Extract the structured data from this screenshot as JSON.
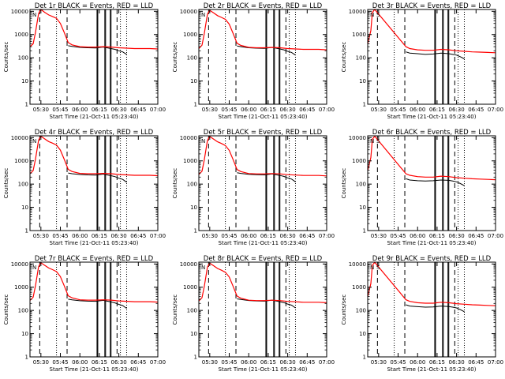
{
  "chart_data": [
    {
      "type": "line",
      "title": "Det 1r BLACK = Events, RED = LLD",
      "flags": [
        "N"
      ],
      "dashed_x": [
        5.485,
        5.836,
        6.477
      ],
      "solid_x": [
        6.22,
        6.23,
        6.32,
        6.33,
        6.39,
        6.4
      ],
      "dotted_x": [
        5.7,
        6.52,
        6.6
      ],
      "series": [
        {
          "name": "BLACK = Events",
          "color": "#000000",
          "x": [
            5.36,
            5.5,
            5.55,
            5.62,
            5.7,
            5.76,
            5.8,
            5.85,
            5.9,
            6.0,
            6.1,
            6.2,
            6.3,
            6.4,
            6.45,
            6.5,
            6.55,
            6.6
          ],
          "values": [
            null,
            null,
            null,
            null,
            null,
            null,
            null,
            330,
            310,
            280,
            270,
            265,
            290,
            250,
            230,
            200,
            180,
            140
          ]
        },
        {
          "name": "RED = LLD",
          "color": "#ff0000",
          "x": [
            5.36,
            5.4,
            5.43,
            5.47,
            5.5,
            5.55,
            5.6,
            5.65,
            5.7,
            5.75,
            5.8,
            5.85,
            5.9,
            6.0,
            6.1,
            6.2,
            6.3,
            6.4,
            6.5,
            6.6,
            6.7,
            6.8,
            6.9,
            7.0
          ],
          "values": [
            300,
            400,
            1200,
            8000,
            12000,
            9000,
            7000,
            6000,
            5000,
            3000,
            1200,
            450,
            360,
            300,
            290,
            290,
            300,
            290,
            270,
            260,
            250,
            250,
            250,
            240
          ]
        }
      ]
    },
    {
      "type": "line",
      "title": "Det 2r BLACK = Events, RED = LLD",
      "flags": [
        "N"
      ],
      "dashed_x": [
        5.485,
        5.836,
        6.477
      ],
      "solid_x": [
        6.22,
        6.23,
        6.32,
        6.33,
        6.39,
        6.4
      ],
      "dotted_x": [
        5.7,
        6.52,
        6.6
      ],
      "series": [
        {
          "name": "BLACK = Events",
          "color": "#000000",
          "x": [
            5.85,
            5.9,
            6.0,
            6.1,
            6.2,
            6.3,
            6.4,
            6.45,
            6.5,
            6.55,
            6.6
          ],
          "values": [
            320,
            300,
            270,
            260,
            255,
            280,
            240,
            220,
            190,
            170,
            130
          ]
        },
        {
          "name": "RED = LLD",
          "color": "#ff0000",
          "x": [
            5.36,
            5.4,
            5.43,
            5.47,
            5.5,
            5.55,
            5.6,
            5.65,
            5.7,
            5.75,
            5.8,
            5.85,
            5.9,
            6.0,
            6.1,
            6.2,
            6.3,
            6.4,
            6.5,
            6.6,
            6.7,
            6.8,
            6.9,
            7.0
          ],
          "values": [
            250,
            350,
            1100,
            7500,
            11000,
            8500,
            6500,
            5500,
            4500,
            2800,
            1100,
            420,
            340,
            280,
            270,
            270,
            280,
            270,
            250,
            240,
            230,
            230,
            230,
            220
          ]
        }
      ]
    },
    {
      "type": "line",
      "title": "Det 3r BLACK = Events, RED = LLD",
      "flags": [
        "N",
        "S"
      ],
      "dashed_x": [
        5.485,
        5.836,
        6.477
      ],
      "solid_x": [
        6.22,
        6.23,
        6.32,
        6.33,
        6.39,
        6.4
      ],
      "dotted_x": [
        5.7,
        6.52,
        6.6
      ],
      "series": [
        {
          "name": "BLACK = Events",
          "color": "#000000",
          "x": [
            5.85,
            5.9,
            6.0,
            6.1,
            6.2,
            6.3,
            6.4,
            6.45,
            6.5,
            6.55,
            6.6
          ],
          "values": [
            180,
            160,
            150,
            140,
            145,
            160,
            150,
            140,
            130,
            110,
            90
          ]
        },
        {
          "name": "RED = LLD",
          "color": "#ff0000",
          "x": [
            5.36,
            5.4,
            5.42,
            5.45,
            5.85,
            5.9,
            6.0,
            6.1,
            6.2,
            6.3,
            6.4,
            6.5,
            6.6,
            6.7,
            6.8,
            6.9,
            7.0
          ],
          "values": [
            400,
            1500,
            9000,
            12000,
            300,
            250,
            220,
            210,
            210,
            230,
            220,
            200,
            190,
            180,
            175,
            170,
            165
          ]
        }
      ]
    },
    {
      "type": "line",
      "title": "Det 4r BLACK = Events, RED = LLD",
      "flags": [
        "N"
      ],
      "dashed_x": [
        5.485,
        5.836,
        6.477
      ],
      "solid_x": [
        6.22,
        6.23,
        6.32,
        6.33,
        6.39,
        6.4
      ],
      "dotted_x": [
        5.7,
        6.52,
        6.6
      ],
      "series": [
        {
          "name": "BLACK = Events",
          "color": "#000000",
          "x": [
            5.85,
            5.9,
            6.0,
            6.1,
            6.2,
            6.3,
            6.4,
            6.45,
            6.5,
            6.55,
            6.6
          ],
          "values": [
            300,
            280,
            260,
            250,
            245,
            270,
            230,
            210,
            180,
            160,
            120
          ]
        },
        {
          "name": "RED = LLD",
          "color": "#ff0000",
          "x": [
            5.36,
            5.4,
            5.43,
            5.47,
            5.5,
            5.55,
            5.6,
            5.65,
            5.7,
            5.75,
            5.8,
            5.85,
            5.9,
            6.0,
            6.1,
            6.2,
            6.3,
            6.4,
            6.5,
            6.6,
            6.7,
            6.8,
            6.9,
            7.0
          ],
          "values": [
            280,
            380,
            1150,
            7800,
            11500,
            8800,
            6800,
            5800,
            4800,
            2900,
            1150,
            430,
            350,
            290,
            280,
            280,
            290,
            280,
            260,
            250,
            240,
            240,
            240,
            230
          ]
        }
      ]
    },
    {
      "type": "line",
      "title": "Det 5r BLACK = Events, RED = LLD",
      "flags": [
        "N"
      ],
      "dashed_x": [
        5.485,
        5.836,
        6.477
      ],
      "solid_x": [
        6.22,
        6.23,
        6.32,
        6.33,
        6.39,
        6.4
      ],
      "dotted_x": [
        5.7,
        6.52,
        6.6
      ],
      "series": [
        {
          "name": "BLACK = Events",
          "color": "#000000",
          "x": [
            5.85,
            5.9,
            6.0,
            6.1,
            6.2,
            6.3,
            6.4,
            6.45,
            6.5,
            6.55,
            6.6
          ],
          "values": [
            310,
            290,
            265,
            255,
            250,
            275,
            235,
            215,
            185,
            165,
            125
          ]
        },
        {
          "name": "RED = LLD",
          "color": "#ff0000",
          "x": [
            5.36,
            5.4,
            5.43,
            5.47,
            5.5,
            5.55,
            5.6,
            5.65,
            5.7,
            5.75,
            5.8,
            5.85,
            5.9,
            6.0,
            6.1,
            6.2,
            6.3,
            6.4,
            6.5,
            6.6,
            6.7,
            6.8,
            6.9,
            7.0
          ],
          "values": [
            260,
            360,
            1100,
            7600,
            11200,
            8600,
            6600,
            5600,
            4600,
            2850,
            1120,
            425,
            345,
            285,
            275,
            275,
            285,
            275,
            255,
            245,
            235,
            235,
            235,
            225
          ]
        }
      ]
    },
    {
      "type": "line",
      "title": "Det 6r BLACK = Events, RED = LLD",
      "flags": [
        "N",
        "S"
      ],
      "dashed_x": [
        5.485,
        5.836,
        6.477
      ],
      "solid_x": [
        6.22,
        6.23,
        6.32,
        6.33,
        6.39,
        6.4
      ],
      "dotted_x": [
        5.7,
        6.52,
        6.6
      ],
      "series": [
        {
          "name": "BLACK = Events",
          "color": "#000000",
          "x": [
            5.85,
            5.9,
            6.0,
            6.1,
            6.2,
            6.3,
            6.4,
            6.45,
            6.5,
            6.55,
            6.6
          ],
          "values": [
            170,
            150,
            140,
            135,
            140,
            150,
            145,
            135,
            125,
            105,
            85
          ]
        },
        {
          "name": "RED = LLD",
          "color": "#ff0000",
          "x": [
            5.36,
            5.4,
            5.42,
            5.45,
            5.85,
            5.9,
            6.0,
            6.1,
            6.2,
            6.3,
            6.4,
            6.5,
            6.6,
            6.7,
            6.8,
            6.9,
            7.0
          ],
          "values": [
            380,
            1400,
            8500,
            11500,
            280,
            240,
            210,
            200,
            200,
            220,
            210,
            190,
            180,
            170,
            165,
            160,
            155
          ]
        }
      ]
    },
    {
      "type": "line",
      "title": "Det 7r BLACK = Events, RED = LLD",
      "flags": [
        "N"
      ],
      "dashed_x": [
        5.485,
        5.836,
        6.477
      ],
      "solid_x": [
        6.22,
        6.23,
        6.32,
        6.33,
        6.39,
        6.4
      ],
      "dotted_x": [
        5.7,
        6.52,
        6.6
      ],
      "series": [
        {
          "name": "BLACK = Events",
          "color": "#000000",
          "x": [
            5.85,
            5.9,
            6.0,
            6.1,
            6.2,
            6.3,
            6.4,
            6.45,
            6.5,
            6.55,
            6.6
          ],
          "values": [
            305,
            285,
            262,
            252,
            248,
            272,
            232,
            212,
            182,
            162,
            122
          ]
        },
        {
          "name": "RED = LLD",
          "color": "#ff0000",
          "x": [
            5.36,
            5.4,
            5.43,
            5.47,
            5.5,
            5.55,
            5.6,
            5.65,
            5.7,
            5.75,
            5.8,
            5.85,
            5.9,
            6.0,
            6.1,
            6.2,
            6.3,
            6.4,
            6.5,
            6.6,
            6.7,
            6.8,
            6.9,
            7.0
          ],
          "values": [
            270,
            370,
            1120,
            7700,
            11300,
            8700,
            6700,
            5700,
            4700,
            2870,
            1130,
            428,
            348,
            288,
            278,
            278,
            288,
            278,
            258,
            248,
            238,
            238,
            238,
            228
          ]
        }
      ]
    },
    {
      "type": "line",
      "title": "Det 8r BLACK = Events, RED = LLD",
      "flags": [
        "N"
      ],
      "dashed_x": [
        5.485,
        5.836,
        6.477
      ],
      "solid_x": [
        6.22,
        6.23,
        6.32,
        6.33,
        6.39,
        6.4
      ],
      "dotted_x": [
        5.7,
        6.52,
        6.6
      ],
      "series": [
        {
          "name": "BLACK = Events",
          "color": "#000000",
          "x": [
            5.85,
            5.9,
            6.0,
            6.1,
            6.2,
            6.3,
            6.4,
            6.45,
            6.5,
            6.55,
            6.6
          ],
          "values": [
            315,
            295,
            268,
            258,
            252,
            278,
            238,
            218,
            188,
            168,
            128
          ]
        },
        {
          "name": "RED = LLD",
          "color": "#ff0000",
          "x": [
            5.36,
            5.4,
            5.43,
            5.47,
            5.5,
            5.55,
            5.6,
            5.65,
            5.7,
            5.75,
            5.8,
            5.85,
            5.9,
            6.0,
            6.1,
            6.2,
            6.3,
            6.4,
            6.5,
            6.6,
            6.7,
            6.8,
            6.9,
            7.0
          ],
          "values": [
            255,
            355,
            1080,
            7400,
            10900,
            8400,
            6400,
            5400,
            4400,
            2750,
            1080,
            415,
            335,
            275,
            265,
            265,
            275,
            265,
            245,
            235,
            225,
            225,
            225,
            215
          ]
        }
      ]
    },
    {
      "type": "line",
      "title": "Det 9r BLACK = Events, RED = LLD",
      "flags": [
        "N",
        "S"
      ],
      "dashed_x": [
        5.485,
        5.836,
        6.477
      ],
      "solid_x": [
        6.22,
        6.23,
        6.32,
        6.33,
        6.39,
        6.4
      ],
      "dotted_x": [
        5.7,
        6.52,
        6.6
      ],
      "series": [
        {
          "name": "BLACK = Events",
          "color": "#000000",
          "x": [
            5.85,
            5.9,
            6.0,
            6.1,
            6.2,
            6.3,
            6.4,
            6.45,
            6.5,
            6.55,
            6.6
          ],
          "values": [
            175,
            155,
            145,
            138,
            142,
            155,
            148,
            138,
            128,
            108,
            88
          ]
        },
        {
          "name": "RED = LLD",
          "color": "#ff0000",
          "x": [
            5.36,
            5.4,
            5.42,
            5.45,
            5.85,
            5.9,
            6.0,
            6.1,
            6.2,
            6.3,
            6.4,
            6.5,
            6.6,
            6.7,
            6.8,
            6.9,
            7.0
          ],
          "values": [
            390,
            1450,
            8800,
            11800,
            290,
            245,
            215,
            205,
            205,
            225,
            215,
            195,
            185,
            175,
            170,
            165,
            160
          ]
        }
      ]
    }
  ],
  "axes": {
    "ylabel": "Counts/sec",
    "xlabel": "Start Time (21-Oct-11 05:23:40)",
    "xlim": [
      5.36,
      7.0
    ],
    "ylim": [
      1,
      12000
    ],
    "yscale": "log",
    "xticks": [
      {
        "v": 5.5,
        "label": "05:30"
      },
      {
        "v": 5.75,
        "label": "05:45"
      },
      {
        "v": 6.0,
        "label": "06:00"
      },
      {
        "v": 6.25,
        "label": "06:15"
      },
      {
        "v": 6.5,
        "label": "06:30"
      },
      {
        "v": 6.75,
        "label": "06:45"
      },
      {
        "v": 7.0,
        "label": "07:00"
      }
    ],
    "yticks": [
      {
        "v": 1,
        "label": "1"
      },
      {
        "v": 10,
        "label": "10"
      },
      {
        "v": 100,
        "label": "100"
      },
      {
        "v": 1000,
        "label": "1000"
      },
      {
        "v": 10000,
        "label": "10000"
      }
    ]
  }
}
